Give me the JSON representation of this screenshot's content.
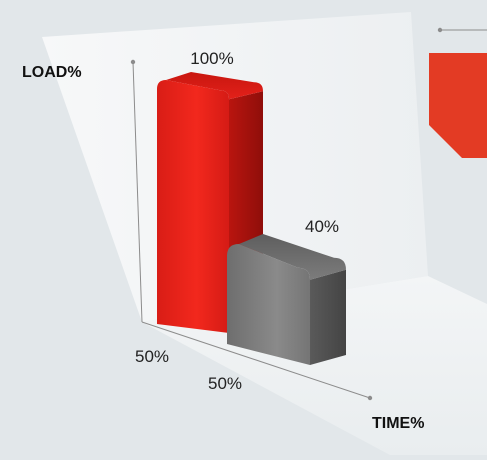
{
  "chart_data": {
    "type": "bar",
    "title": "",
    "ylabel": "LOAD%",
    "xlabel": "TIME%",
    "ylim": [
      0,
      100
    ],
    "grid": false,
    "bars": [
      {
        "load": 100,
        "time": 50,
        "load_label": "100%",
        "time_label": "50%",
        "color": "#e5231b"
      },
      {
        "load": 40,
        "time": 50,
        "load_label": "40%",
        "time_label": "50%",
        "color": "#7d7d7d"
      }
    ]
  },
  "colors": {
    "background": "#e2e7ea",
    "accent": "#e33b24",
    "axis": "#8c8c8c"
  }
}
